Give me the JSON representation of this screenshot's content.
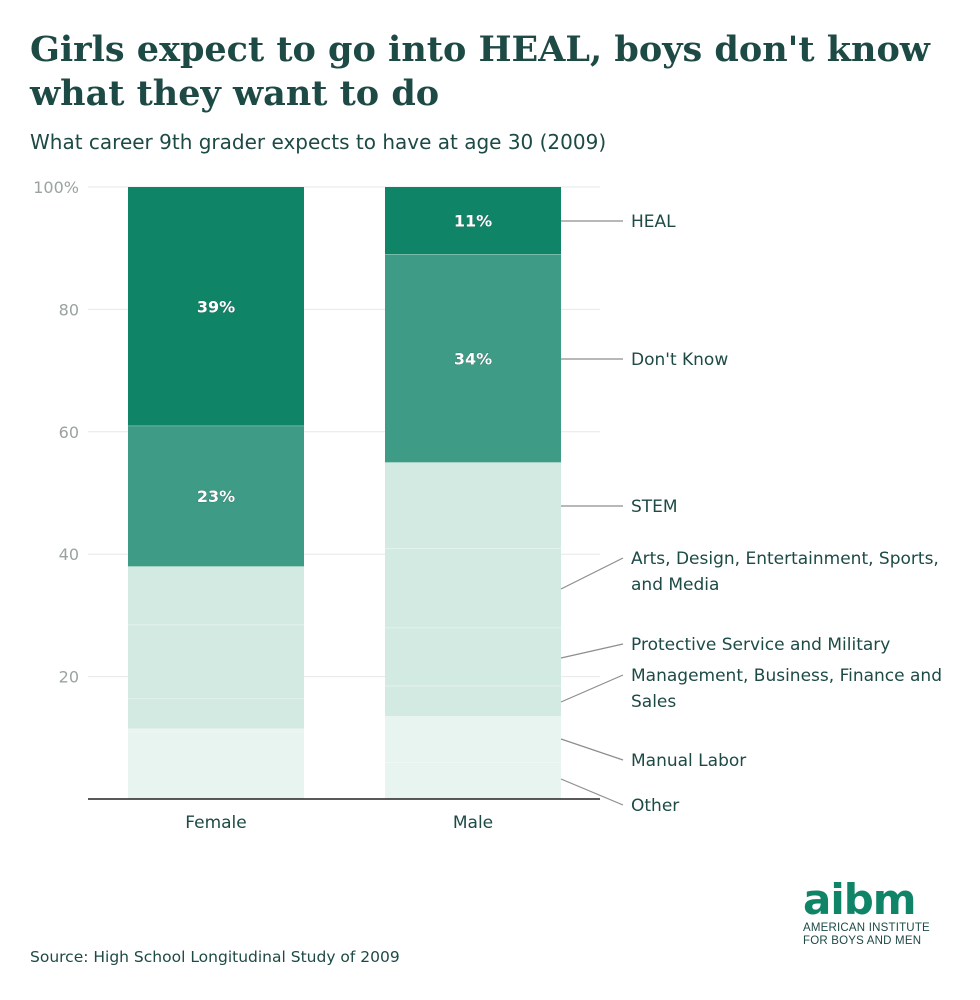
{
  "title": "Girls expect to go into HEAL, boys don't know what they want to do",
  "subtitle": "What career 9th grader expects to have at age 30 (2009)",
  "source": "Source: High School Longitudinal Study of 2009",
  "logo": {
    "mark": "aibm",
    "line1": "AMERICAN INSTITUTE",
    "line2": "FOR BOYS AND MEN"
  },
  "colors": {
    "heal": "#0f8467",
    "dont_know": "#3e9c86",
    "light": "#d3eae3",
    "lightest": "#e8f4f0",
    "text": "#1d4a45",
    "axis_label": "#9aa3a1"
  },
  "chart_data": {
    "type": "bar",
    "stacked": true,
    "ylim": [
      0,
      100
    ],
    "yticks": [
      20,
      40,
      60,
      80,
      100
    ],
    "ytick_labels": [
      "20",
      "40",
      "60",
      "80",
      "100%"
    ],
    "grid": true,
    "categories": [
      "Female",
      "Male"
    ],
    "series": [
      {
        "name": "Other",
        "values": [
          11,
          6
        ]
      },
      {
        "name": "Manual Labor",
        "values": [
          0.5,
          7.5
        ]
      },
      {
        "name": "Management, Business, Finance and Sales",
        "values": [
          5,
          5
        ]
      },
      {
        "name": "Protective Service and Military",
        "values": [
          12,
          9.5
        ]
      },
      {
        "name": "Arts, Design, Entertainment, Sports, and Media",
        "values": [
          9.5,
          13
        ]
      },
      {
        "name": "STEM",
        "values": [
          0,
          14
        ]
      },
      {
        "name": "Don't Know",
        "values": [
          23,
          34
        ]
      },
      {
        "name": "HEAL",
        "values": [
          39,
          11
        ]
      }
    ],
    "data_labels": [
      {
        "series": "HEAL",
        "category": "Female",
        "text": "39%"
      },
      {
        "series": "Don't Know",
        "category": "Female",
        "text": "23%"
      },
      {
        "series": "HEAL",
        "category": "Male",
        "text": "11%"
      },
      {
        "series": "Don't Know",
        "category": "Male",
        "text": "34%"
      }
    ],
    "legend_placement": "right, labels connected to Male bar"
  }
}
